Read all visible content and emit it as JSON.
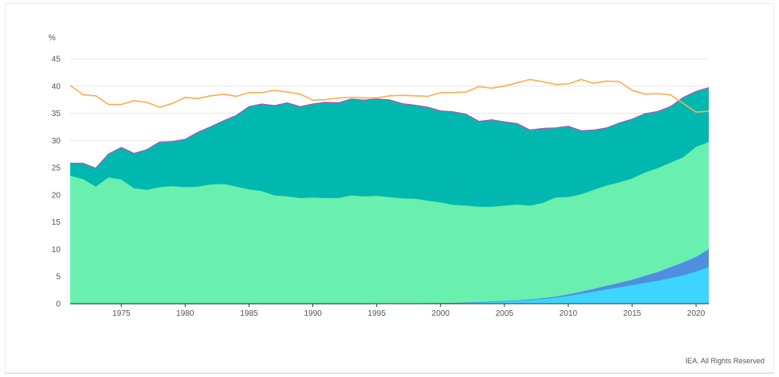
{
  "chart_data": {
    "type": "area",
    "y_unit": "%",
    "ylim": [
      0,
      45
    ],
    "xlim": [
      1971,
      2021
    ],
    "y_ticks": [
      0,
      5,
      10,
      15,
      20,
      25,
      30,
      35,
      40,
      45
    ],
    "x_ticks": [
      1975,
      1980,
      1985,
      1990,
      1995,
      2000,
      2005,
      2010,
      2015,
      2020
    ],
    "grid": true,
    "x": [
      1971,
      1972,
      1973,
      1974,
      1975,
      1976,
      1977,
      1978,
      1979,
      1980,
      1981,
      1982,
      1983,
      1984,
      1985,
      1986,
      1987,
      1988,
      1989,
      1990,
      1991,
      1992,
      1993,
      1994,
      1995,
      1996,
      1997,
      1998,
      1999,
      2000,
      2001,
      2002,
      2003,
      2004,
      2005,
      2006,
      2007,
      2008,
      2009,
      2010,
      2011,
      2012,
      2013,
      2014,
      2015,
      2016,
      2017,
      2018,
      2019,
      2020,
      2021
    ],
    "stacked_series": [
      {
        "color": "#3dd5ff",
        "values": [
          0,
          0,
          0,
          0,
          0,
          0,
          0,
          0,
          0,
          0,
          0,
          0,
          0,
          0,
          0,
          0,
          0,
          0,
          0,
          0,
          0,
          0,
          0,
          0,
          0.02,
          0.05,
          0.06,
          0.07,
          0.1,
          0.12,
          0.15,
          0.2,
          0.25,
          0.32,
          0.4,
          0.5,
          0.65,
          0.85,
          1.1,
          1.4,
          1.8,
          2.2,
          2.6,
          3.0,
          3.4,
          3.8,
          4.2,
          4.7,
          5.2,
          5.9,
          6.7
        ]
      },
      {
        "color": "#4f8fe0",
        "values": [
          0,
          0,
          0,
          0,
          0,
          0,
          0,
          0,
          0,
          0,
          0,
          0,
          0,
          0,
          0,
          0,
          0,
          0,
          0,
          0,
          0,
          0,
          0,
          0,
          0,
          0,
          0,
          0,
          0,
          0,
          0,
          0.02,
          0.05,
          0.08,
          0.1,
          0.1,
          0.15,
          0.15,
          0.2,
          0.3,
          0.4,
          0.5,
          0.7,
          0.8,
          1.0,
          1.3,
          1.6,
          2.0,
          2.4,
          2.7,
          3.3
        ]
      },
      {
        "color": "#69f0ae",
        "values": [
          23.5,
          22.9,
          21.5,
          23.2,
          22.8,
          21.2,
          20.9,
          21.4,
          21.6,
          21.4,
          21.5,
          21.9,
          22.0,
          21.5,
          21.0,
          20.7,
          19.9,
          19.7,
          19.4,
          19.5,
          19.4,
          19.4,
          19.9,
          19.7,
          19.8,
          19.5,
          19.3,
          19.2,
          18.8,
          18.5,
          18.0,
          17.8,
          17.5,
          17.4,
          17.5,
          17.6,
          17.2,
          17.5,
          18.2,
          17.9,
          17.9,
          18.2,
          18.4,
          18.5,
          18.6,
          19.0,
          19.1,
          19.2,
          19.3,
          20.2,
          19.7
        ]
      },
      {
        "color": "#00b8b0",
        "values": [
          2.3,
          2.9,
          3.4,
          4.3,
          5.9,
          6.4,
          7.4,
          8.3,
          8.2,
          8.8,
          10.0,
          10.6,
          11.6,
          13.1,
          15.2,
          16.0,
          16.5,
          17.2,
          16.8,
          17.2,
          17.6,
          17.5,
          17.7,
          17.7,
          17.8,
          17.9,
          17.4,
          17.2,
          17.2,
          16.8,
          17.1,
          16.8,
          15.7,
          16.0,
          15.4,
          14.9,
          13.9,
          13.7,
          12.8,
          13.0,
          11.7,
          11.0,
          10.6,
          10.9,
          10.9,
          10.8,
          10.4,
          10.3,
          11.0,
          10.2,
          10.0
        ]
      }
    ],
    "line_series": [
      {
        "color": "#ffac4d",
        "values": [
          40.1,
          38.4,
          38.2,
          36.6,
          36.6,
          37.3,
          37.0,
          36.1,
          36.8,
          37.9,
          37.7,
          38.2,
          38.5,
          38.1,
          38.8,
          38.8,
          39.2,
          38.9,
          38.5,
          37.4,
          37.5,
          37.8,
          37.9,
          37.8,
          37.8,
          38.2,
          38.3,
          38.2,
          38.1,
          38.8,
          38.8,
          38.9,
          39.9,
          39.6,
          40.0,
          40.6,
          41.2,
          40.8,
          40.3,
          40.4,
          41.2,
          40.5,
          40.9,
          40.8,
          39.2,
          38.5,
          38.6,
          38.4,
          36.8,
          35.2,
          35.4
        ]
      }
    ]
  },
  "footer": {
    "credit": "IEA. All Rights Reserved"
  }
}
